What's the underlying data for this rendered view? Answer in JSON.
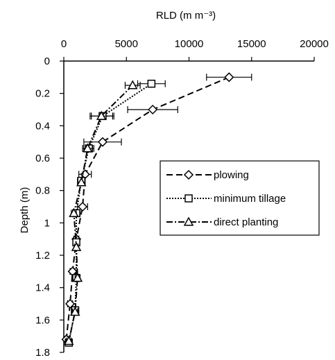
{
  "chart_data": {
    "type": "line",
    "title": "",
    "xlabel": "RLD (m m⁻³)",
    "ylabel": "Depth (m)",
    "x_axis_position": "top",
    "y_axis_inverted": true,
    "xlim": [
      0,
      20000
    ],
    "ylim": [
      0,
      1.8
    ],
    "x_ticks": [
      "0",
      "5000",
      "10000",
      "15000",
      "20000"
    ],
    "y_ticks": [
      "0",
      "0.2",
      "0.4",
      "0.6",
      "0.8",
      "1",
      "1.2",
      "1.4",
      "1.6",
      "1.8"
    ],
    "grid": false,
    "legend_position": "middle-right",
    "series": [
      {
        "name": "plowing",
        "marker": "diamond",
        "line_style": "dashed",
        "points": [
          {
            "depth": 0.1,
            "rld": 13200,
            "err": 1800
          },
          {
            "depth": 0.3,
            "rld": 7100,
            "err": 2000
          },
          {
            "depth": 0.5,
            "rld": 3100,
            "err": 1500
          },
          {
            "depth": 0.7,
            "rld": 1700,
            "err": 500
          },
          {
            "depth": 0.9,
            "rld": 1500,
            "err": 400
          },
          {
            "depth": 1.1,
            "rld": 1000,
            "err": 200
          },
          {
            "depth": 1.3,
            "rld": 700,
            "err": 200
          },
          {
            "depth": 1.5,
            "rld": 500,
            "err": 200
          },
          {
            "depth": 1.72,
            "rld": 200,
            "err": 150
          }
        ]
      },
      {
        "name": "minimum tillage",
        "marker": "square",
        "line_style": "dotted",
        "points": [
          {
            "depth": 0.14,
            "rld": 7000,
            "err": 1100
          },
          {
            "depth": 0.34,
            "rld": 3100,
            "err": 900
          },
          {
            "depth": 0.54,
            "rld": 2000,
            "err": 400
          },
          {
            "depth": 0.74,
            "rld": 1400,
            "err": 300
          },
          {
            "depth": 0.94,
            "rld": 1000,
            "err": 300
          },
          {
            "depth": 1.12,
            "rld": 1000,
            "err": 150
          },
          {
            "depth": 1.34,
            "rld": 1000,
            "err": 200
          },
          {
            "depth": 1.54,
            "rld": 900,
            "err": 300
          },
          {
            "depth": 1.74,
            "rld": 400,
            "err": 200
          }
        ]
      },
      {
        "name": "direct planting",
        "marker": "triangle",
        "line_style": "dash-dot",
        "points": [
          {
            "depth": 0.15,
            "rld": 5500,
            "err": 600
          },
          {
            "depth": 0.34,
            "rld": 3000,
            "err": 900
          },
          {
            "depth": 0.54,
            "rld": 1900,
            "err": 400
          },
          {
            "depth": 0.75,
            "rld": 1400,
            "err": 300
          },
          {
            "depth": 0.94,
            "rld": 800,
            "err": 200
          },
          {
            "depth": 1.15,
            "rld": 1000,
            "err": 150
          },
          {
            "depth": 1.34,
            "rld": 1100,
            "err": 200
          },
          {
            "depth": 1.55,
            "rld": 900,
            "err": 200
          },
          {
            "depth": 1.73,
            "rld": 400,
            "err": 200
          }
        ]
      }
    ]
  }
}
